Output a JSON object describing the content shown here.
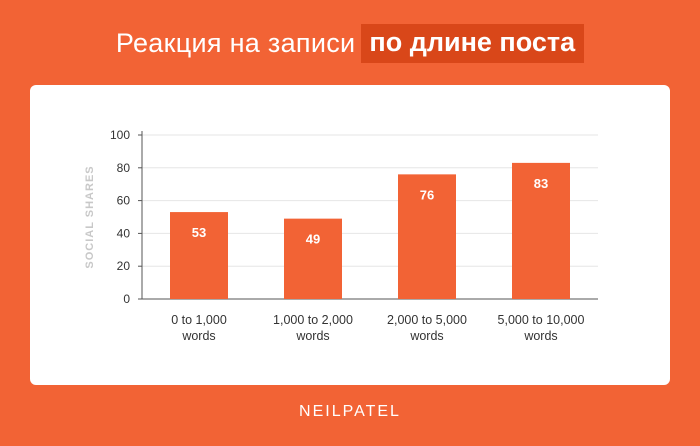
{
  "header": {
    "title_plain": "Реакция на записи",
    "title_highlight": "по длине поста"
  },
  "footer": {
    "brand": "NEILPATEL"
  },
  "colors": {
    "background": "#f26335",
    "bar": "#f26335",
    "highlight": "#d94719",
    "card": "#ffffff"
  },
  "chart_data": {
    "type": "bar",
    "title": "Реакция на записи по длине поста",
    "xlabel": "",
    "ylabel": "SOCIAL SHARES",
    "categories": [
      [
        "0 to 1,000",
        "words"
      ],
      [
        "1,000 to 2,000",
        "words"
      ],
      [
        "2,000 to 5,000",
        "words"
      ],
      [
        "5,000 to 10,000",
        "words"
      ]
    ],
    "values": [
      53,
      49,
      76,
      83
    ],
    "ylim": [
      0,
      100
    ],
    "yticks": [
      0,
      20,
      40,
      60,
      80,
      100
    ],
    "grid": true,
    "legend": "none"
  }
}
